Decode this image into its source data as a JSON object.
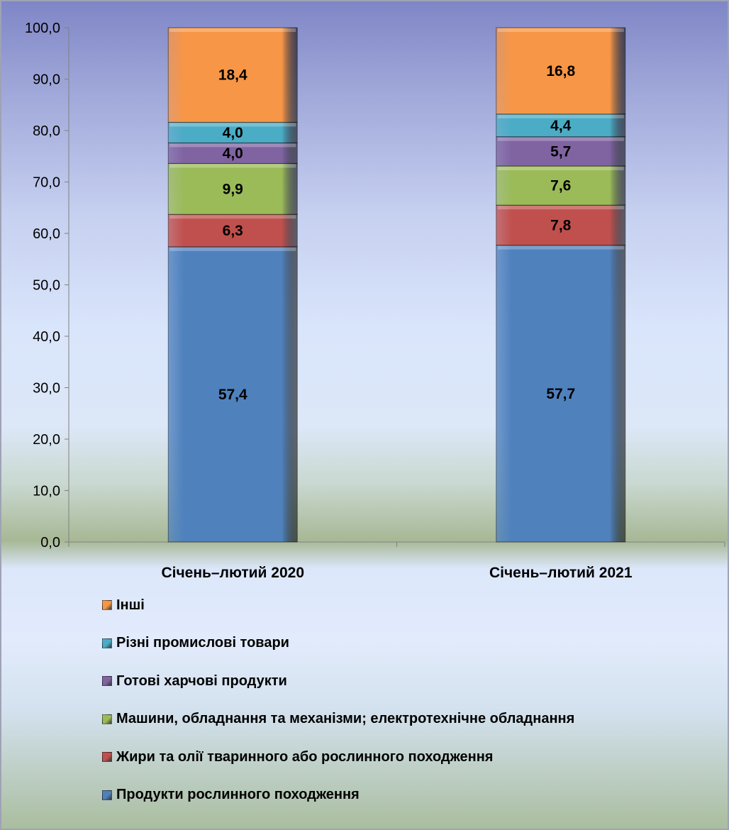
{
  "chart_data": {
    "type": "bar",
    "stacked": true,
    "categories": [
      "Січень–лютий 2020",
      "Січень–лютий 2021"
    ],
    "series": [
      {
        "name": "Продукти рослинного походження",
        "values": [
          57.4,
          57.7
        ],
        "color": "#4f81bd"
      },
      {
        "name": "Жири та олії тваринного або рослинного походження",
        "values": [
          6.3,
          7.8
        ],
        "color": "#c0504d"
      },
      {
        "name": "Машини, обладнання та механізми; електротехнічне обладнання",
        "values": [
          9.9,
          7.6
        ],
        "color": "#9bbb59"
      },
      {
        "name": "Готові харчові продукти",
        "values": [
          4.0,
          5.7
        ],
        "color": "#8064a2"
      },
      {
        "name": "Різні промислові товари",
        "values": [
          4.0,
          4.4
        ],
        "color": "#4bacc6"
      },
      {
        "name": "Інші",
        "values": [
          18.4,
          16.8
        ],
        "color": "#f79646"
      }
    ],
    "data_labels": [
      [
        "57,4",
        "57,7"
      ],
      [
        "6,3",
        "7,8"
      ],
      [
        "9,9",
        "7,6"
      ],
      [
        "4,0",
        "5,7"
      ],
      [
        "4,0",
        "4,4"
      ],
      [
        "18,4",
        "16,8"
      ]
    ],
    "yticks": [
      "0,0",
      "10,0",
      "20,0",
      "30,0",
      "40,0",
      "50,0",
      "60,0",
      "70,0",
      "80,0",
      "90,0",
      "100,0"
    ],
    "ylim": [
      0,
      100
    ],
    "title": "",
    "xlabel": "",
    "ylabel": "",
    "grid": false,
    "legend_position": "bottom"
  },
  "legend_order": [
    5,
    4,
    3,
    2,
    1,
    0
  ]
}
